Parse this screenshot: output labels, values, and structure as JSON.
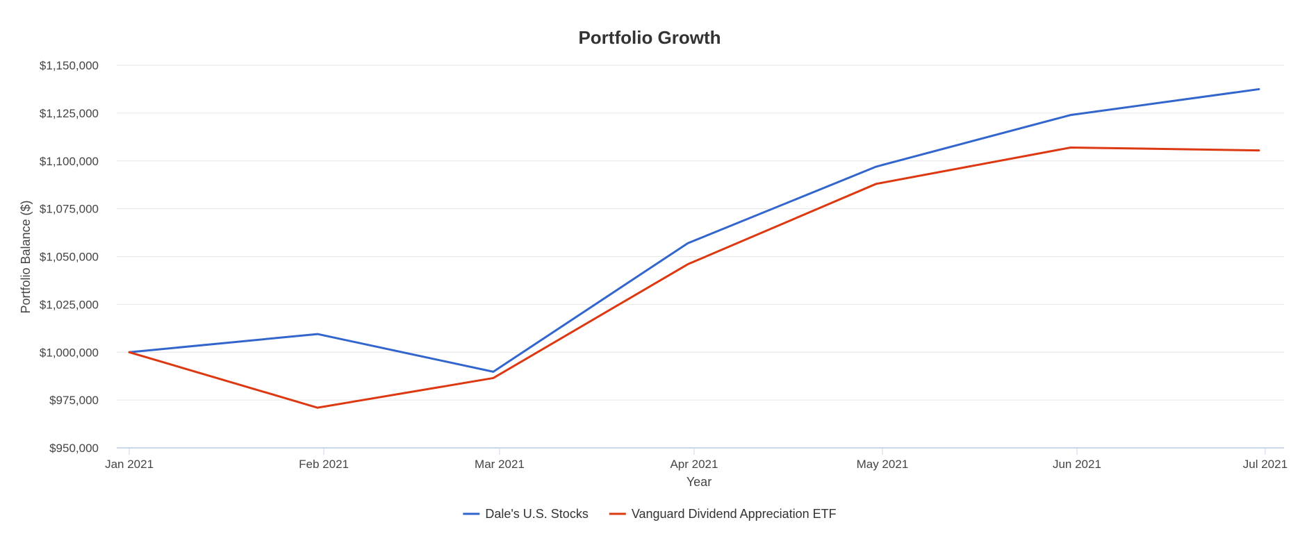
{
  "chart_data": {
    "type": "line",
    "title": "Portfolio Growth",
    "xlabel": "Year",
    "ylabel": "Portfolio Balance ($)",
    "x": [
      "Jan 2021",
      "Feb 2021",
      "Mar 2021",
      "Apr 2021",
      "May 2021",
      "Jun 2021",
      "Jul 2021"
    ],
    "x_dates": [
      "2021-01-01",
      "2021-01-31",
      "2021-02-28",
      "2021-03-31",
      "2021-04-30",
      "2021-05-31",
      "2021-06-30"
    ],
    "x_ticks": [
      {
        "label": "Jan 2021",
        "date": "2021-01-01"
      },
      {
        "label": "Feb 2021",
        "date": "2021-02-01"
      },
      {
        "label": "Mar 2021",
        "date": "2021-03-01"
      },
      {
        "label": "Apr 2021",
        "date": "2021-04-01"
      },
      {
        "label": "May 2021",
        "date": "2021-05-01"
      },
      {
        "label": "Jun 2021",
        "date": "2021-06-01"
      },
      {
        "label": "Jul 2021",
        "date": "2021-07-01"
      }
    ],
    "y_ticks": [
      950000,
      975000,
      1000000,
      1025000,
      1050000,
      1075000,
      1100000,
      1125000,
      1150000
    ],
    "y_tick_labels": [
      "$950,000",
      "$975,000",
      "$1,000,000",
      "$1,025,000",
      "$1,050,000",
      "$1,075,000",
      "$1,100,000",
      "$1,125,000",
      "$1,150,000"
    ],
    "ylim": [
      950000,
      1150000
    ],
    "grid": true,
    "legend": "bottom-center",
    "series": [
      {
        "name": "Dale's U.S. Stocks",
        "color": "#3366cc",
        "values": [
          1000000,
          1009500,
          989800,
          1057000,
          1097000,
          1124000,
          1137500
        ]
      },
      {
        "name": "Vanguard Dividend Appreciation ETF",
        "color": "#dc3912",
        "values": [
          1000000,
          971000,
          986500,
          1046000,
          1088000,
          1107000,
          1105500
        ]
      }
    ]
  }
}
